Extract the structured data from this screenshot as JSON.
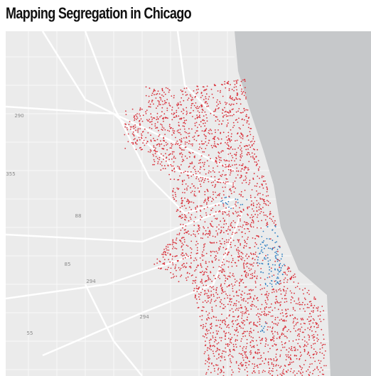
{
  "header": {
    "title": "Mapping Segregation in Chicago"
  },
  "map": {
    "road_labels": [
      "290",
      "355",
      "88",
      "85",
      "294",
      "294",
      "55"
    ]
  }
}
